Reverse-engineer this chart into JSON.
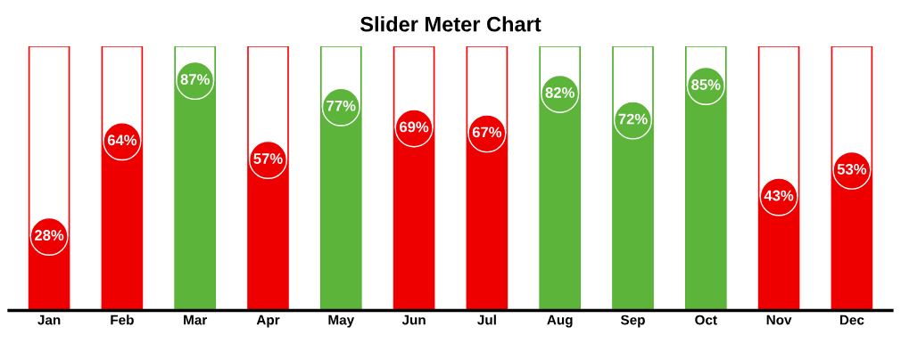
{
  "chart_data": {
    "type": "bar",
    "title": "Slider Meter Chart",
    "categories": [
      "Jan",
      "Feb",
      "Mar",
      "Apr",
      "May",
      "Jun",
      "Jul",
      "Aug",
      "Sep",
      "Oct",
      "Nov",
      "Dec"
    ],
    "series": [
      {
        "values": [
          100,
          100,
          100,
          100,
          100,
          100,
          100,
          100,
          100,
          100,
          100,
          100
        ],
        "colors": [
          "#ff0000",
          "#ff0000",
          "#4caf2a",
          "#ff0000",
          "#4caf2a",
          "#ff0000",
          "#ff0000",
          "#4caf2a",
          "#4caf2a",
          "#4caf2a",
          "#ff0000",
          "#ff0000"
        ]
      },
      {
        "values": [
          28,
          64,
          87,
          57,
          77,
          69,
          67,
          82,
          72,
          85,
          43,
          53
        ],
        "colors": [
          "#ee0000",
          "#ee0000",
          "#5cb43a",
          "#ee0000",
          "#5cb43a",
          "#ee0000",
          "#ee0000",
          "#5cb43a",
          "#5cb43a",
          "#5cb43a",
          "#ee0000",
          "#ee0000"
        ],
        "value_labels": [
          "28%",
          "64%",
          "87%",
          "57%",
          "77%",
          "69%",
          "67%",
          "82%",
          "72%",
          "85%",
          "43%",
          "53%"
        ]
      }
    ],
    "ylim": [
      0,
      100
    ],
    "tick_labels": "x",
    "grid": false,
    "legend": false
  }
}
